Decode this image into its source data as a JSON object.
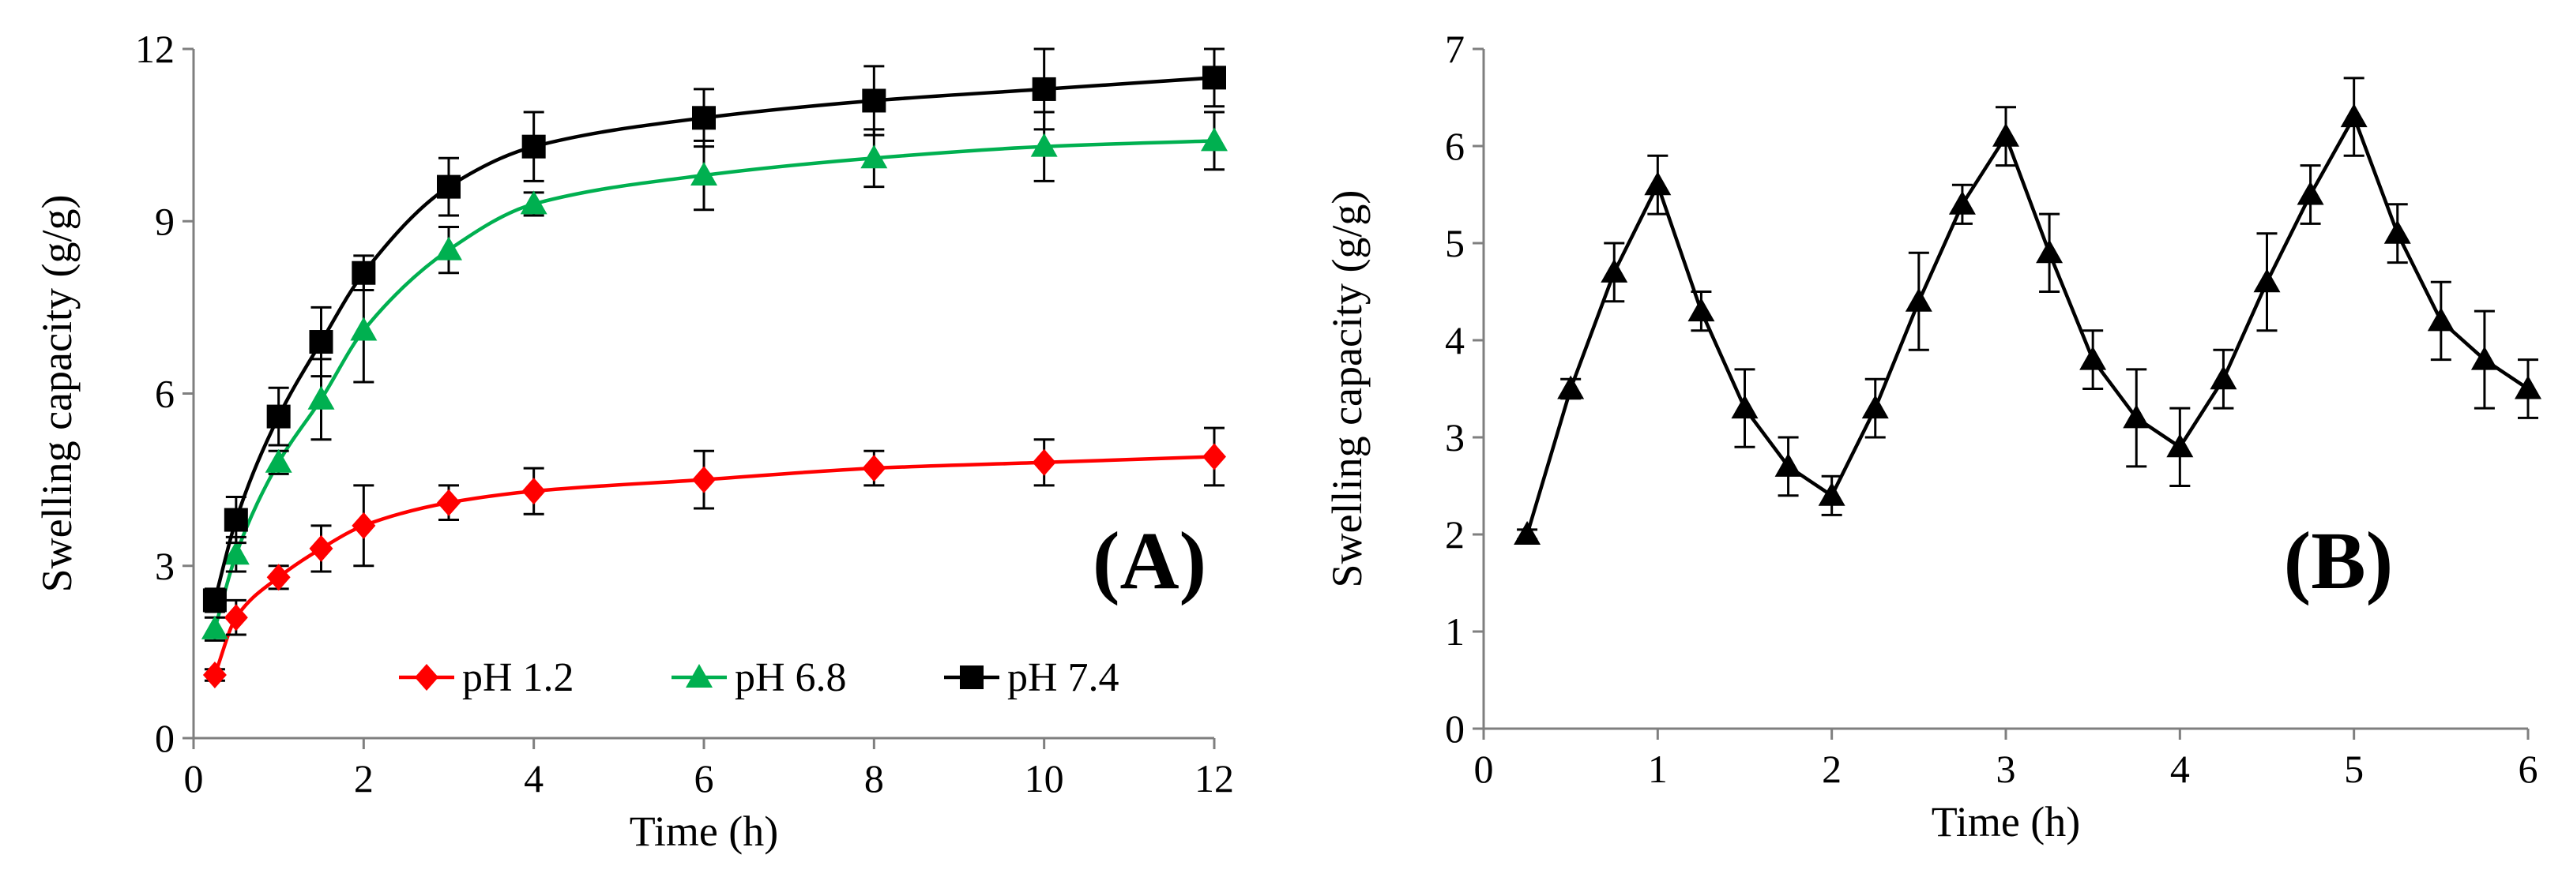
{
  "chart_data": [
    {
      "type": "line",
      "panel_label": "(A)",
      "xlabel": "Time (h)",
      "ylabel": "Swelling capacity (g/g)",
      "xlim": [
        0,
        12
      ],
      "ylim": [
        0,
        12
      ],
      "xticks": [
        0,
        2,
        4,
        6,
        8,
        10,
        12
      ],
      "yticks": [
        0,
        3,
        6,
        9,
        12
      ],
      "legend_position": "bottom-right",
      "x": [
        0.25,
        0.5,
        1,
        1.5,
        2,
        3,
        4,
        6,
        8,
        10,
        12
      ],
      "series": [
        {
          "name": "pH 1.2",
          "color": "#ff0000",
          "marker": "diamond",
          "values": [
            1.1,
            2.1,
            2.8,
            3.3,
            3.7,
            4.1,
            4.3,
            4.5,
            4.7,
            4.8,
            4.9
          ],
          "errors": [
            0.1,
            0.3,
            0.2,
            0.4,
            0.7,
            0.3,
            0.4,
            0.5,
            0.3,
            0.4,
            0.5
          ]
        },
        {
          "name": "pH 6.8",
          "color": "#00b050",
          "marker": "triangle",
          "values": [
            1.9,
            3.2,
            4.8,
            5.9,
            7.1,
            8.5,
            9.3,
            9.8,
            10.1,
            10.3,
            10.4
          ],
          "errors": [
            0.2,
            0.3,
            0.2,
            0.7,
            0.9,
            0.4,
            0.2,
            0.6,
            0.5,
            0.6,
            0.5
          ]
        },
        {
          "name": "pH 7.4",
          "color": "#000000",
          "marker": "square",
          "values": [
            2.4,
            3.8,
            5.6,
            6.9,
            8.1,
            9.6,
            10.3,
            10.8,
            11.1,
            11.3,
            11.5
          ],
          "errors": [
            0.2,
            0.4,
            0.5,
            0.6,
            0.3,
            0.5,
            0.6,
            0.5,
            0.6,
            0.7,
            0.5
          ]
        }
      ]
    },
    {
      "type": "line",
      "panel_label": "(B)",
      "xlabel": "Time (h)",
      "ylabel": "Swelling capacity (g/g)",
      "xlim": [
        0,
        6
      ],
      "ylim": [
        0,
        7
      ],
      "xticks": [
        0,
        1,
        2,
        3,
        4,
        5,
        6
      ],
      "yticks": [
        0,
        1,
        2,
        3,
        4,
        5,
        6,
        7
      ],
      "x": [
        0.25,
        0.5,
        0.75,
        1,
        1.25,
        1.5,
        1.75,
        2,
        2.25,
        2.5,
        2.75,
        3,
        3.25,
        3.5,
        3.75,
        4,
        4.25,
        4.5,
        4.75,
        5,
        5.25,
        5.5,
        5.75,
        6
      ],
      "series": [
        {
          "name": "",
          "color": "#000000",
          "marker": "triangle",
          "values": [
            2.0,
            3.5,
            4.7,
            5.6,
            4.3,
            3.3,
            2.7,
            2.4,
            3.3,
            4.4,
            5.4,
            6.1,
            4.9,
            3.8,
            3.2,
            2.9,
            3.6,
            4.6,
            5.5,
            6.3,
            5.1,
            4.2,
            3.8,
            3.5
          ],
          "errors": [
            0.05,
            0.1,
            0.3,
            0.3,
            0.2,
            0.4,
            0.3,
            0.2,
            0.3,
            0.5,
            0.2,
            0.3,
            0.4,
            0.3,
            0.5,
            0.4,
            0.3,
            0.5,
            0.3,
            0.4,
            0.3,
            0.4,
            0.5,
            0.3
          ]
        }
      ]
    }
  ]
}
